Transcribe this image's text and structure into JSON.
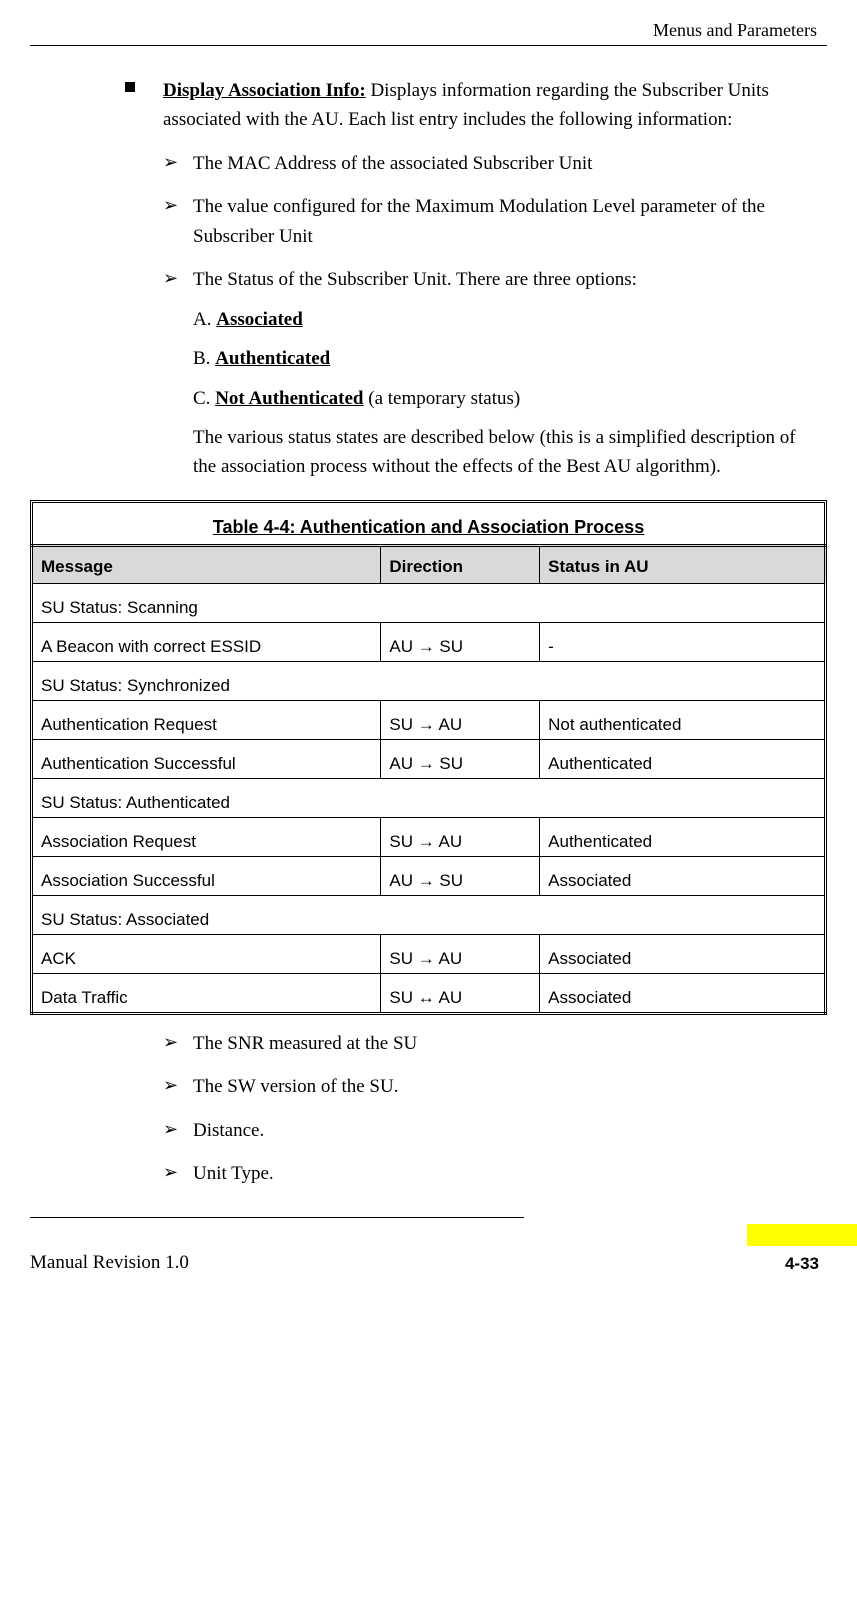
{
  "header": {
    "right": "Menus and Parameters"
  },
  "main_bullet": {
    "lead_bold": "Display Association Info:",
    "lead_rest": " Displays information regarding the Subscriber Units associated with the AU. Each list entry includes the following information:"
  },
  "items_before": [
    "The MAC Address of the associated Subscriber Unit",
    "The value configured for the Maximum Modulation Level parameter of the Subscriber Unit",
    "The Status of the Subscriber Unit. There are three options:"
  ],
  "status_options": [
    {
      "prefix": "A. ",
      "label": "Associated",
      "suffix": ""
    },
    {
      "prefix": "B. ",
      "label": "Authenticated",
      "suffix": ""
    },
    {
      "prefix": "C. ",
      "label": "Not Authenticated",
      "suffix": " (a temporary status)"
    }
  ],
  "status_para": "The various status states are described below (this is a simplified description of the association process without the effects of the Best AU algorithm).",
  "table": {
    "caption": "Table 4-4: Authentication and Association Process",
    "headers": [
      "Message",
      "Direction",
      "Status in AU"
    ],
    "rows": [
      {
        "type": "span",
        "text": "SU Status: Scanning"
      },
      {
        "type": "row",
        "cells": [
          "A Beacon with correct ESSID",
          "AU  → SU",
          "-"
        ]
      },
      {
        "type": "span",
        "text": "SU Status: Synchronized"
      },
      {
        "type": "row",
        "cells": [
          "Authentication Request",
          "SU  → AU",
          "Not authenticated"
        ]
      },
      {
        "type": "row",
        "cells": [
          "Authentication Successful",
          "AU  → SU",
          "Authenticated"
        ]
      },
      {
        "type": "span",
        "text": "SU Status: Authenticated"
      },
      {
        "type": "row",
        "cells": [
          "Association Request",
          "SU  → AU",
          "Authenticated"
        ]
      },
      {
        "type": "row",
        "cells": [
          "Association Successful",
          "AU  → SU",
          "Associated"
        ]
      },
      {
        "type": "span",
        "text": "SU Status: Associated"
      },
      {
        "type": "row",
        "cells": [
          "ACK",
          "SU  → AU",
          "Associated"
        ]
      },
      {
        "type": "row",
        "cells": [
          "Data Traffic",
          "SU  ↔ AU",
          "Associated"
        ]
      }
    ]
  },
  "items_after": [
    "The SNR measured at the SU",
    "The SW version of the SU.",
    "Distance.",
    "Unit Type."
  ],
  "footer": {
    "left": "Manual Revision 1.0",
    "page": "4-33"
  }
}
